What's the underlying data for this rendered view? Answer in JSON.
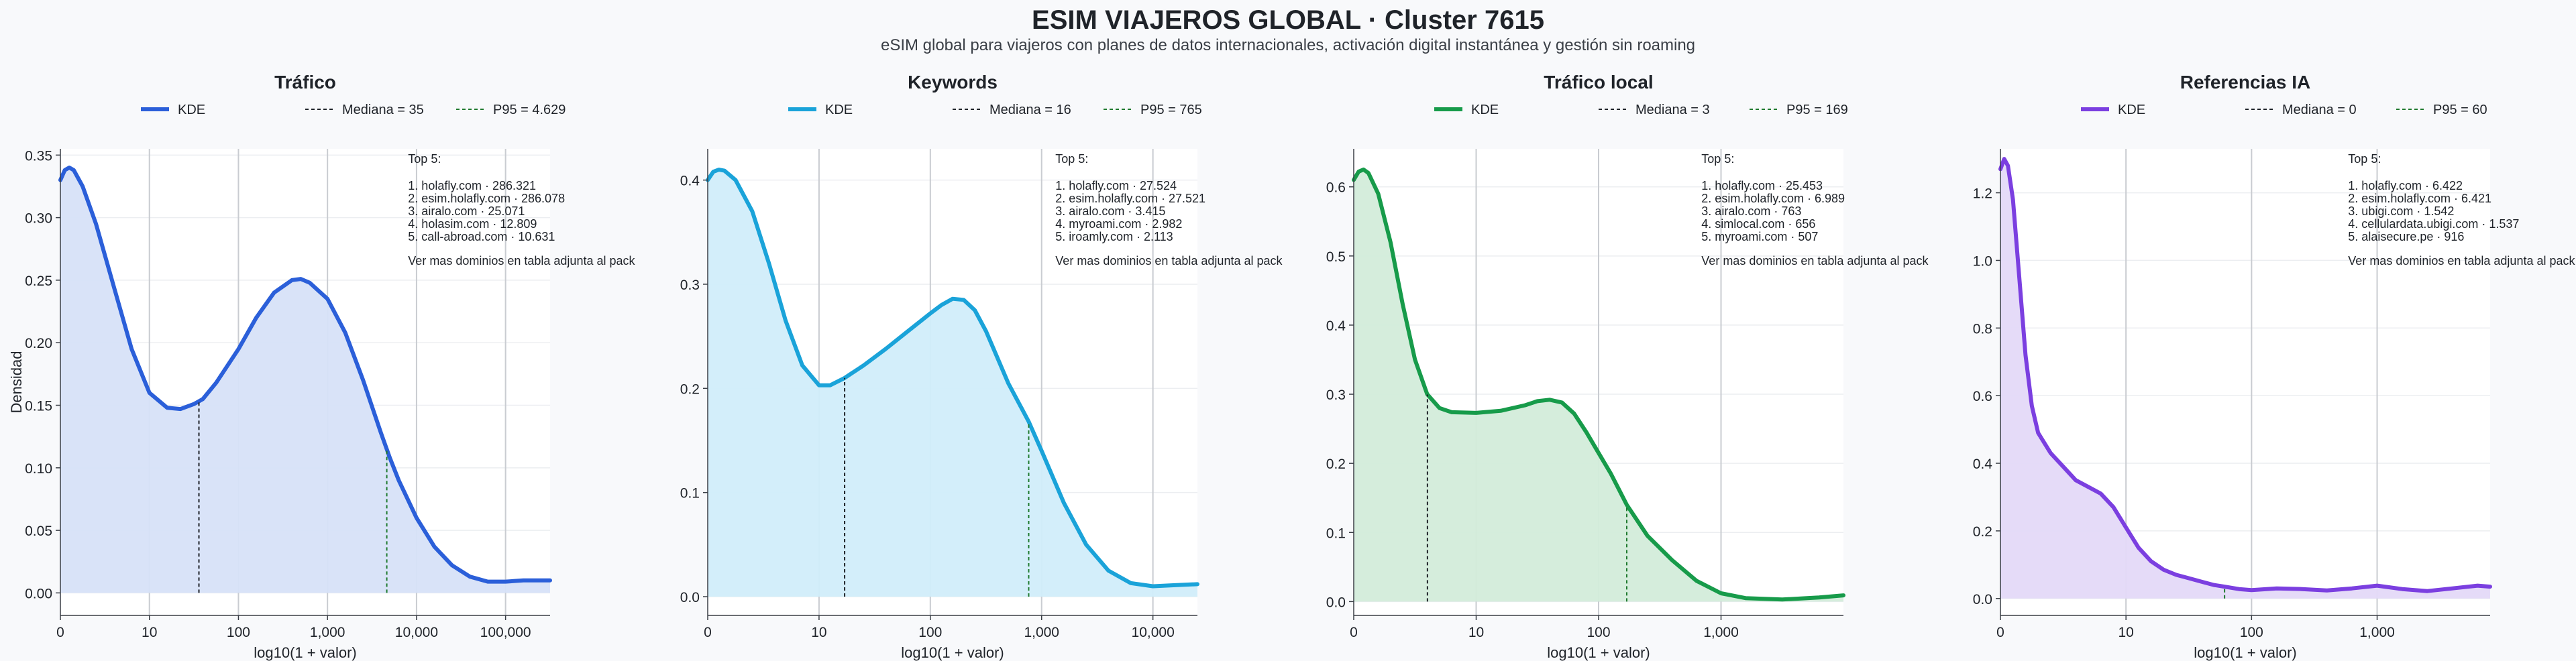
{
  "title": "ESIM VIAJEROS GLOBAL · Cluster 7615",
  "subtitle": "eSIM global para viajeros con planes de datos internacionales, activación digital instantánea y gestión sin roaming",
  "chart_data": [
    {
      "type": "area",
      "title": "Tráfico",
      "xlabel": "log10(1 + valor)",
      "ylabel": "Densidad",
      "color": "#2b5fd9",
      "fill": "#d7e1f8",
      "xlim": [
        0,
        5.5
      ],
      "ylim": [
        -0.018,
        0.355
      ],
      "yticks": [
        0.0,
        0.05,
        0.1,
        0.15,
        0.2,
        0.25,
        0.3,
        0.35
      ],
      "ytick_labels": [
        "0.00",
        "0.05",
        "0.10",
        "0.15",
        "0.20",
        "0.25",
        "0.30",
        "0.35"
      ],
      "xticks": [
        0,
        1,
        2,
        3,
        4,
        5
      ],
      "xtick_labels": [
        "0",
        "10",
        "100",
        "1,000",
        "10,000",
        "100,000"
      ],
      "legend": [
        {
          "label": "KDE",
          "style": "solid"
        },
        {
          "label": "Mediana = 35",
          "style": "median"
        },
        {
          "label": "P95 = 4.629",
          "style": "p95"
        }
      ],
      "median_x": 1.556,
      "p95_x": 3.666,
      "top5_title": "Top 5:",
      "top5": [
        "1. holafly.com · 286.321",
        "2. esim.holafly.com · 286.078",
        "3. airalo.com · 25.071",
        "4. holasim.com · 12.809",
        "5. call-abroad.com · 10.631"
      ],
      "footnote": "Ver mas dominios en tabla adjunta al pack",
      "points": [
        [
          0,
          0.33
        ],
        [
          0.05,
          0.338
        ],
        [
          0.1,
          0.34
        ],
        [
          0.15,
          0.338
        ],
        [
          0.25,
          0.325
        ],
        [
          0.4,
          0.295
        ],
        [
          0.6,
          0.245
        ],
        [
          0.8,
          0.195
        ],
        [
          1.0,
          0.16
        ],
        [
          1.2,
          0.148
        ],
        [
          1.35,
          0.147
        ],
        [
          1.5,
          0.151
        ],
        [
          1.6,
          0.155
        ],
        [
          1.75,
          0.168
        ],
        [
          2.0,
          0.195
        ],
        [
          2.2,
          0.22
        ],
        [
          2.4,
          0.24
        ],
        [
          2.6,
          0.25
        ],
        [
          2.7,
          0.251
        ],
        [
          2.8,
          0.248
        ],
        [
          3.0,
          0.235
        ],
        [
          3.2,
          0.208
        ],
        [
          3.4,
          0.17
        ],
        [
          3.6,
          0.128
        ],
        [
          3.7,
          0.108
        ],
        [
          3.8,
          0.09
        ],
        [
          4.0,
          0.06
        ],
        [
          4.2,
          0.037
        ],
        [
          4.4,
          0.022
        ],
        [
          4.6,
          0.013
        ],
        [
          4.8,
          0.009
        ],
        [
          5.0,
          0.009
        ],
        [
          5.2,
          0.01
        ],
        [
          5.5,
          0.01
        ]
      ]
    },
    {
      "type": "area",
      "title": "Keywords",
      "xlabel": "log10(1 + valor)",
      "ylabel": "",
      "color": "#1aa3d9",
      "fill": "#d1edfa",
      "xlim": [
        0,
        4.4
      ],
      "ylim": [
        -0.018,
        0.43
      ],
      "yticks": [
        0.0,
        0.1,
        0.2,
        0.3,
        0.4
      ],
      "ytick_labels": [
        "0.0",
        "0.1",
        "0.2",
        "0.3",
        "0.4"
      ],
      "xticks": [
        0,
        1,
        2,
        3,
        4
      ],
      "xtick_labels": [
        "0",
        "10",
        "100",
        "1,000",
        "10,000"
      ],
      "legend": [
        {
          "label": "KDE",
          "style": "solid"
        },
        {
          "label": "Mediana = 16",
          "style": "median"
        },
        {
          "label": "P95 = 765",
          "style": "p95"
        }
      ],
      "median_x": 1.23,
      "p95_x": 2.884,
      "top5_title": "Top 5:",
      "top5": [
        "1. holafly.com · 27.524",
        "2. esim.holafly.com · 27.521",
        "3. airalo.com · 3.415",
        "4. myroami.com · 2.982",
        "5. iroamly.com · 2.113"
      ],
      "footnote": "Ver mas dominios en tabla adjunta al pack",
      "points": [
        [
          0,
          0.4
        ],
        [
          0.05,
          0.408
        ],
        [
          0.1,
          0.41
        ],
        [
          0.15,
          0.409
        ],
        [
          0.25,
          0.4
        ],
        [
          0.4,
          0.37
        ],
        [
          0.55,
          0.32
        ],
        [
          0.7,
          0.265
        ],
        [
          0.85,
          0.222
        ],
        [
          1.0,
          0.203
        ],
        [
          1.1,
          0.203
        ],
        [
          1.23,
          0.21
        ],
        [
          1.4,
          0.222
        ],
        [
          1.6,
          0.238
        ],
        [
          1.8,
          0.255
        ],
        [
          2.0,
          0.272
        ],
        [
          2.1,
          0.28
        ],
        [
          2.2,
          0.286
        ],
        [
          2.3,
          0.285
        ],
        [
          2.4,
          0.275
        ],
        [
          2.5,
          0.255
        ],
        [
          2.6,
          0.23
        ],
        [
          2.7,
          0.205
        ],
        [
          2.8,
          0.185
        ],
        [
          2.884,
          0.168
        ],
        [
          3.0,
          0.14
        ],
        [
          3.2,
          0.09
        ],
        [
          3.4,
          0.05
        ],
        [
          3.6,
          0.025
        ],
        [
          3.8,
          0.013
        ],
        [
          4.0,
          0.01
        ],
        [
          4.2,
          0.011
        ],
        [
          4.4,
          0.012
        ]
      ]
    },
    {
      "type": "area",
      "title": "Tráfico local",
      "xlabel": "log10(1 + valor)",
      "ylabel": "",
      "color": "#179b4a",
      "fill": "#d3ecda",
      "xlim": [
        0,
        4.0
      ],
      "ylim": [
        -0.02,
        0.655
      ],
      "yticks": [
        0.0,
        0.1,
        0.2,
        0.3,
        0.4,
        0.5,
        0.6
      ],
      "ytick_labels": [
        "0.0",
        "0.1",
        "0.2",
        "0.3",
        "0.4",
        "0.5",
        "0.6"
      ],
      "xticks": [
        0,
        1,
        2,
        3
      ],
      "xtick_labels": [
        "0",
        "10",
        "100",
        "1,000"
      ],
      "legend": [
        {
          "label": "KDE",
          "style": "solid"
        },
        {
          "label": "Mediana = 3",
          "style": "median"
        },
        {
          "label": "P95 = 169",
          "style": "p95"
        }
      ],
      "median_x": 0.602,
      "p95_x": 2.23,
      "top5_title": "Top 5:",
      "top5": [
        "1. holafly.com · 25.453",
        "2. esim.holafly.com · 6.989",
        "3. airalo.com · 763",
        "4. simlocal.com · 656",
        "5. myroami.com · 507"
      ],
      "footnote": "Ver mas dominios en tabla adjunta al pack",
      "points": [
        [
          0,
          0.61
        ],
        [
          0.04,
          0.622
        ],
        [
          0.08,
          0.625
        ],
        [
          0.12,
          0.62
        ],
        [
          0.2,
          0.59
        ],
        [
          0.3,
          0.52
        ],
        [
          0.4,
          0.43
        ],
        [
          0.5,
          0.35
        ],
        [
          0.6,
          0.3
        ],
        [
          0.7,
          0.28
        ],
        [
          0.8,
          0.274
        ],
        [
          1.0,
          0.273
        ],
        [
          1.2,
          0.276
        ],
        [
          1.4,
          0.284
        ],
        [
          1.5,
          0.29
        ],
        [
          1.6,
          0.292
        ],
        [
          1.7,
          0.288
        ],
        [
          1.8,
          0.272
        ],
        [
          1.9,
          0.245
        ],
        [
          2.0,
          0.215
        ],
        [
          2.1,
          0.185
        ],
        [
          2.23,
          0.14
        ],
        [
          2.4,
          0.095
        ],
        [
          2.6,
          0.06
        ],
        [
          2.8,
          0.03
        ],
        [
          3.0,
          0.012
        ],
        [
          3.2,
          0.005
        ],
        [
          3.5,
          0.003
        ],
        [
          3.8,
          0.006
        ],
        [
          4.0,
          0.009
        ]
      ]
    },
    {
      "type": "area",
      "title": "Referencias IA",
      "xlabel": "log10(1 + valor)",
      "ylabel": "",
      "color": "#7b3fe0",
      "fill": "#e4d9f8",
      "xlim": [
        0,
        3.9
      ],
      "ylim": [
        -0.05,
        1.33
      ],
      "yticks": [
        0.0,
        0.2,
        0.4,
        0.6,
        0.8,
        1.0,
        1.2
      ],
      "ytick_labels": [
        "0.0",
        "0.2",
        "0.4",
        "0.6",
        "0.8",
        "1.0",
        "1.2"
      ],
      "xticks": [
        0,
        1,
        2,
        3
      ],
      "xtick_labels": [
        "0",
        "10",
        "100",
        "1,000"
      ],
      "legend": [
        {
          "label": "KDE",
          "style": "solid"
        },
        {
          "label": "Mediana = 0",
          "style": "median"
        },
        {
          "label": "P95 = 60",
          "style": "p95"
        }
      ],
      "median_x": 0,
      "p95_x": 1.785,
      "top5_title": "Top 5:",
      "top5": [
        "1. holafly.com · 6.422",
        "2. esim.holafly.com · 6.421",
        "3. ubigi.com · 1.542",
        "4. cellulardata.ubigi.com · 1.537",
        "5. alaisecure.pe · 916"
      ],
      "footnote": "Ver mas dominios en tabla adjunta al pack",
      "points": [
        [
          0,
          1.27
        ],
        [
          0.03,
          1.3
        ],
        [
          0.06,
          1.28
        ],
        [
          0.1,
          1.18
        ],
        [
          0.15,
          0.95
        ],
        [
          0.2,
          0.72
        ],
        [
          0.25,
          0.57
        ],
        [
          0.3,
          0.49
        ],
        [
          0.4,
          0.43
        ],
        [
          0.5,
          0.39
        ],
        [
          0.6,
          0.35
        ],
        [
          0.7,
          0.33
        ],
        [
          0.8,
          0.31
        ],
        [
          0.9,
          0.27
        ],
        [
          1.0,
          0.21
        ],
        [
          1.1,
          0.15
        ],
        [
          1.2,
          0.11
        ],
        [
          1.3,
          0.085
        ],
        [
          1.4,
          0.07
        ],
        [
          1.5,
          0.06
        ],
        [
          1.6,
          0.05
        ],
        [
          1.7,
          0.04
        ],
        [
          1.785,
          0.035
        ],
        [
          1.9,
          0.028
        ],
        [
          2.0,
          0.025
        ],
        [
          2.2,
          0.03
        ],
        [
          2.4,
          0.028
        ],
        [
          2.6,
          0.024
        ],
        [
          2.8,
          0.03
        ],
        [
          3.0,
          0.038
        ],
        [
          3.2,
          0.028
        ],
        [
          3.4,
          0.022
        ],
        [
          3.6,
          0.03
        ],
        [
          3.8,
          0.038
        ],
        [
          3.9,
          0.035
        ]
      ]
    }
  ]
}
